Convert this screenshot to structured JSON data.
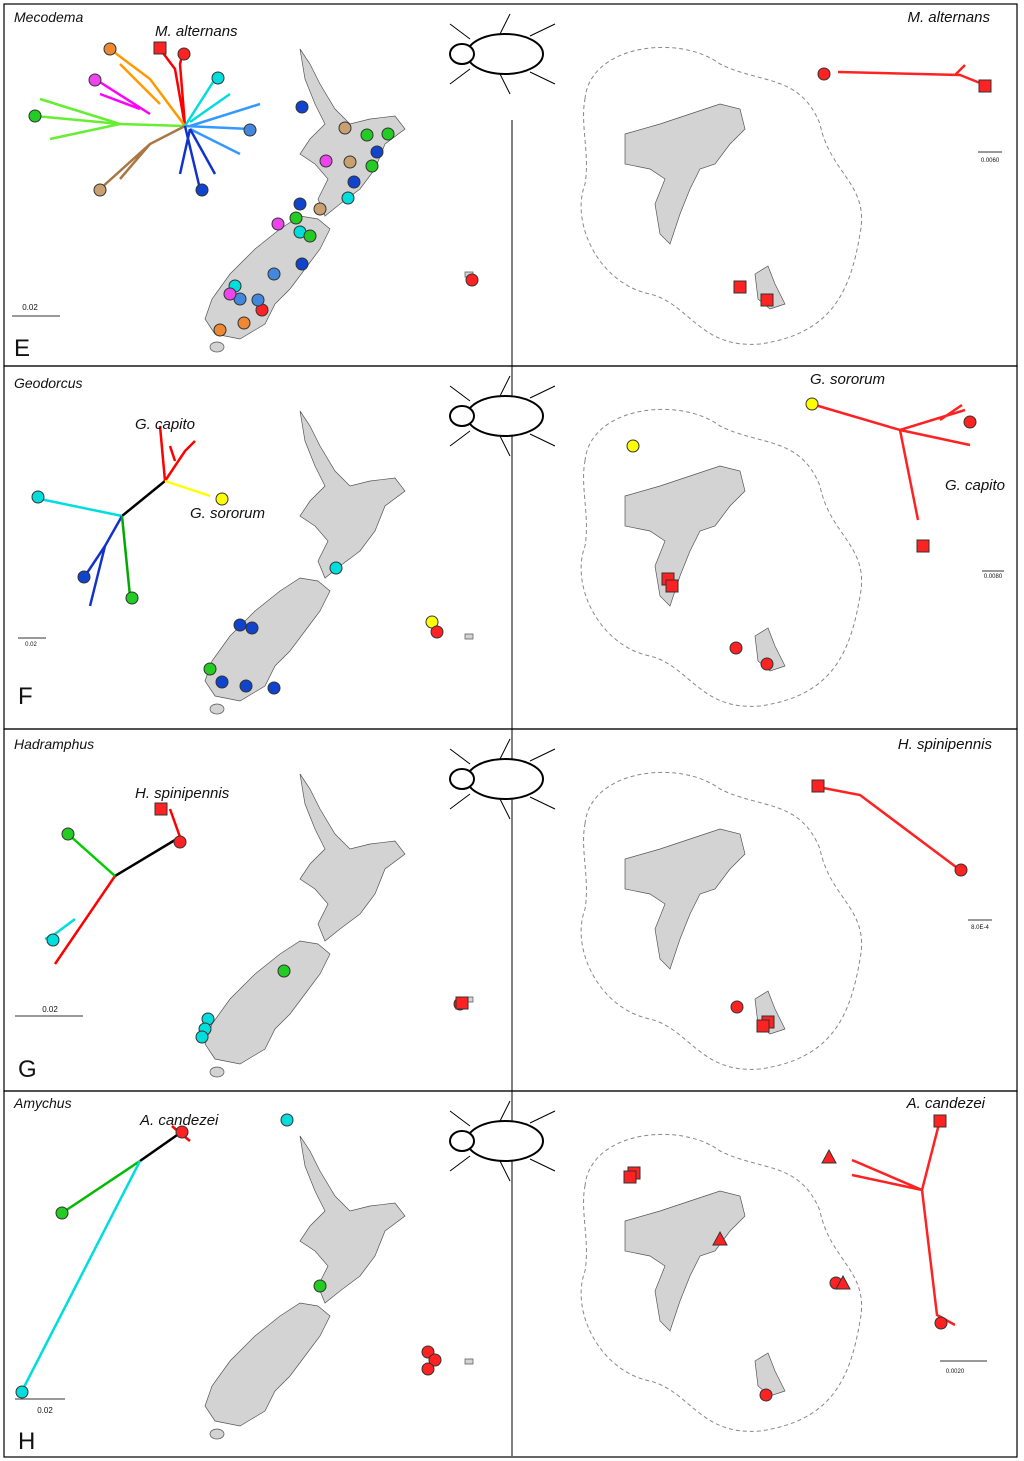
{
  "panels": [
    {
      "letter": "E",
      "genus": "Mecodema",
      "tree_labels": [
        "M. alternans"
      ],
      "island_labels": [
        "M. alternans"
      ],
      "scale_left": "0.02",
      "scale_right": "0.0060"
    },
    {
      "letter": "F",
      "genus": "Geodorcus",
      "tree_labels": [
        "G. capito",
        "G. sororum"
      ],
      "island_labels": [
        "G. sororum",
        "G. capito"
      ],
      "scale_left": "0.02",
      "scale_right": "0.0080"
    },
    {
      "letter": "G",
      "genus": "Hadramphus",
      "tree_labels": [
        "H. spinipennis"
      ],
      "island_labels": [
        "H. spinipennis"
      ],
      "scale_left": "0.02",
      "scale_right": "8.0E-4"
    },
    {
      "letter": "H",
      "genus": "Amychus",
      "tree_labels": [
        "A. candezei"
      ],
      "island_labels": [
        "A. candezei"
      ],
      "scale_left": "0.02",
      "scale_right": "0.0020"
    }
  ]
}
